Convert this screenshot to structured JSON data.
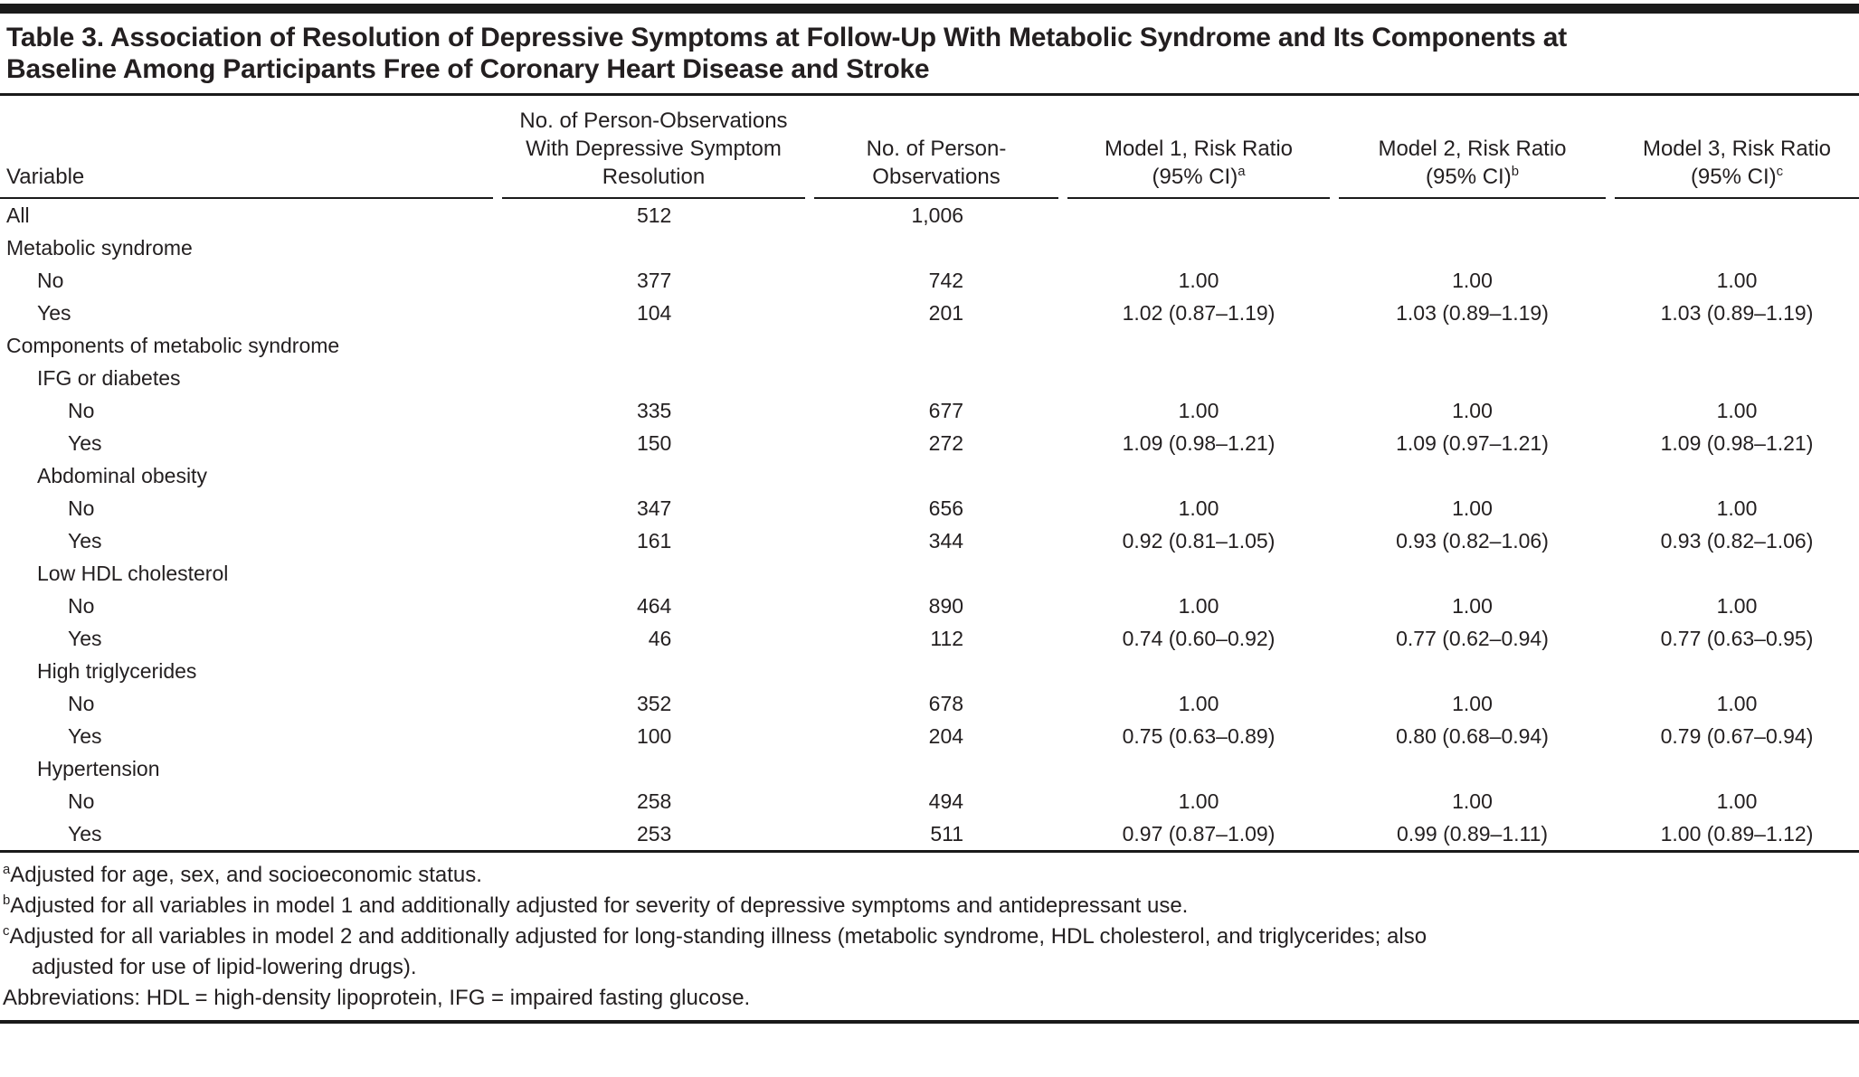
{
  "title": {
    "lines": [
      "Table 3. Association of Resolution of Depressive Symptoms at Follow-Up With Metabolic Syndrome and Its Components at",
      "Baseline Among Participants Free of Coronary Heart Disease and Stroke"
    ]
  },
  "colors": {
    "text": "#231f20",
    "rule": "#1a1a1a",
    "background": "#ffffff"
  },
  "table": {
    "columns": [
      {
        "id": "variable",
        "lines": [
          "Variable"
        ]
      },
      {
        "id": "n-resolution",
        "lines": [
          "No. of Person-Observations",
          "With Depressive Symptom",
          "Resolution"
        ]
      },
      {
        "id": "n-total",
        "lines": [
          "No. of Person-",
          "Observations"
        ]
      },
      {
        "id": "model1",
        "lines": [
          "Model 1, Risk Ratio",
          "(95% CI)"
        ],
        "sup": "a"
      },
      {
        "id": "model2",
        "lines": [
          "Model 2, Risk Ratio",
          "(95% CI)"
        ],
        "sup": "b"
      },
      {
        "id": "model3",
        "lines": [
          "Model 3, Risk Ratio",
          "(95% CI)"
        ],
        "sup": "c"
      }
    ],
    "rows": [
      {
        "label": "All",
        "indent": 0,
        "values": [
          "512",
          "1,006",
          "",
          "",
          ""
        ]
      },
      {
        "label": "Metabolic syndrome",
        "indent": 0,
        "values": [
          "",
          "",
          "",
          "",
          ""
        ]
      },
      {
        "label": "No",
        "indent": 1,
        "values": [
          "377",
          "742",
          "1.00",
          "1.00",
          "1.00"
        ]
      },
      {
        "label": "Yes",
        "indent": 1,
        "values": [
          "104",
          "201",
          "1.02 (0.87–1.19)",
          "1.03 (0.89–1.19)",
          "1.03 (0.89–1.19)"
        ]
      },
      {
        "label": "Components of metabolic syndrome",
        "indent": 0,
        "values": [
          "",
          "",
          "",
          "",
          ""
        ]
      },
      {
        "label": "IFG or diabetes",
        "indent": 1,
        "values": [
          "",
          "",
          "",
          "",
          ""
        ]
      },
      {
        "label": "No",
        "indent": 2,
        "values": [
          "335",
          "677",
          "1.00",
          "1.00",
          "1.00"
        ]
      },
      {
        "label": "Yes",
        "indent": 2,
        "values": [
          "150",
          "272",
          "1.09 (0.98–1.21)",
          "1.09 (0.97–1.21)",
          "1.09 (0.98–1.21)"
        ]
      },
      {
        "label": "Abdominal obesity",
        "indent": 1,
        "values": [
          "",
          "",
          "",
          "",
          ""
        ]
      },
      {
        "label": "No",
        "indent": 2,
        "values": [
          "347",
          "656",
          "1.00",
          "1.00",
          "1.00"
        ]
      },
      {
        "label": "Yes",
        "indent": 2,
        "values": [
          "161",
          "344",
          "0.92 (0.81–1.05)",
          "0.93 (0.82–1.06)",
          "0.93 (0.82–1.06)"
        ]
      },
      {
        "label": "Low HDL cholesterol",
        "indent": 1,
        "values": [
          "",
          "",
          "",
          "",
          ""
        ]
      },
      {
        "label": "No",
        "indent": 2,
        "values": [
          "464",
          "890",
          "1.00",
          "1.00",
          "1.00"
        ]
      },
      {
        "label": "Yes",
        "indent": 2,
        "values": [
          "46",
          "112",
          "0.74 (0.60–0.92)",
          "0.77 (0.62–0.94)",
          "0.77 (0.63–0.95)"
        ]
      },
      {
        "label": "High triglycerides",
        "indent": 1,
        "values": [
          "",
          "",
          "",
          "",
          ""
        ]
      },
      {
        "label": "No",
        "indent": 2,
        "values": [
          "352",
          "678",
          "1.00",
          "1.00",
          "1.00"
        ]
      },
      {
        "label": "Yes",
        "indent": 2,
        "values": [
          "100",
          "204",
          "0.75 (0.63–0.89)",
          "0.80 (0.68–0.94)",
          "0.79 (0.67–0.94)"
        ]
      },
      {
        "label": "Hypertension",
        "indent": 1,
        "values": [
          "",
          "",
          "",
          "",
          ""
        ]
      },
      {
        "label": "No",
        "indent": 2,
        "values": [
          "258",
          "494",
          "1.00",
          "1.00",
          "1.00"
        ]
      },
      {
        "label": "Yes",
        "indent": 2,
        "values": [
          "253",
          "511",
          "0.97 (0.87–1.09)",
          "0.99 (0.89–1.11)",
          "1.00 (0.89–1.12)"
        ]
      }
    ]
  },
  "footnotes": [
    {
      "marker": "a",
      "lines": [
        "Adjusted for age, sex, and socioeconomic status."
      ]
    },
    {
      "marker": "b",
      "lines": [
        "Adjusted for all variables in model 1 and additionally adjusted for severity of depressive symptoms and antidepressant use."
      ]
    },
    {
      "marker": "c",
      "lines": [
        "Adjusted for all variables in model 2 and additionally adjusted for long-standing illness (metabolic syndrome, HDL cholesterol, and triglycerides; also",
        "adjusted for use of lipid-lowering drugs)."
      ]
    },
    {
      "marker": "",
      "lines": [
        "Abbreviations: HDL = high-density lipoprotein, IFG = impaired fasting glucose."
      ]
    }
  ]
}
